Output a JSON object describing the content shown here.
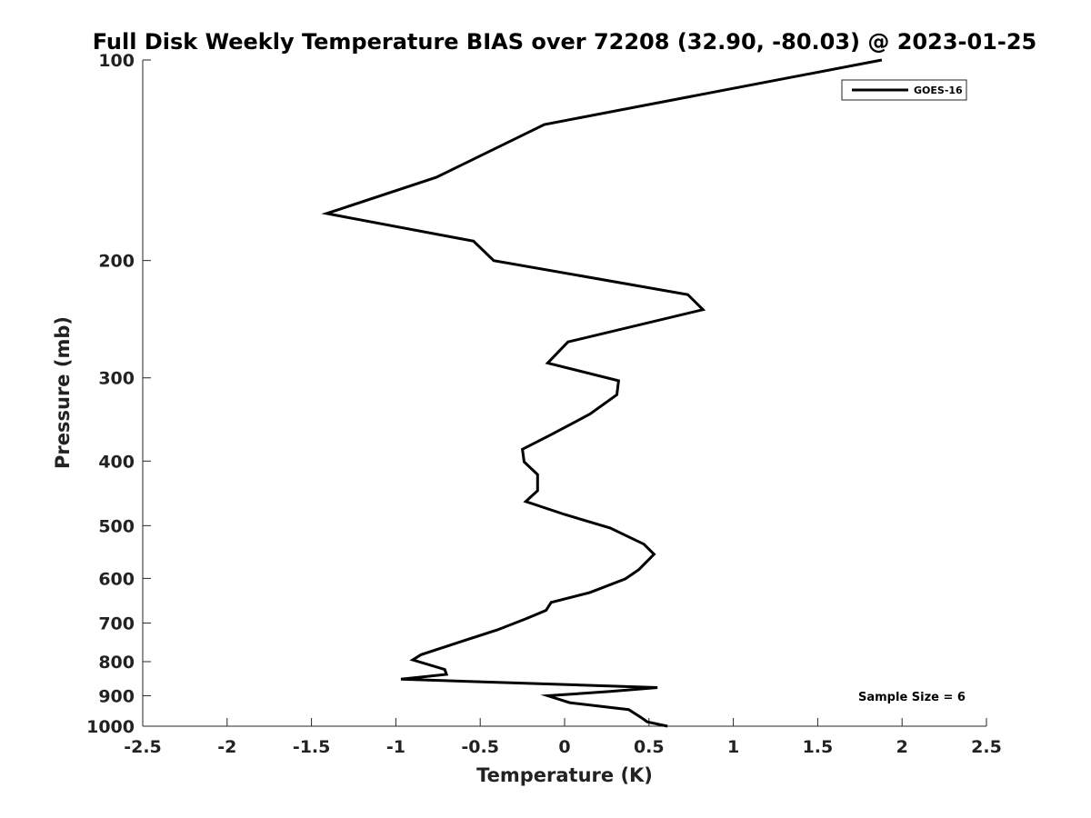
{
  "chart_data": {
    "type": "line",
    "title": "Full Disk Weekly Temperature BIAS over 72208 (32.90, -80.03) @ 2023-01-25",
    "xlabel": "Temperature (K)",
    "ylabel": "Pressure (mb)",
    "xlim": [
      -2.5,
      2.5
    ],
    "ylim": [
      100,
      1000
    ],
    "y_scale": "log",
    "y_reversed": true,
    "grid": false,
    "x_ticks": [
      -2.5,
      -2,
      -1.5,
      -1,
      -0.5,
      0,
      0.5,
      1,
      1.5,
      2,
      2.5
    ],
    "x_tick_labels": [
      "-2.5",
      "-2",
      "-1.5",
      "-1",
      "-0.5",
      "0",
      "0.5",
      "1",
      "1.5",
      "2",
      "2.5"
    ],
    "y_ticks": [
      100,
      200,
      300,
      400,
      500,
      600,
      700,
      800,
      900,
      1000
    ],
    "y_tick_labels": [
      "100",
      "200",
      "300",
      "400",
      "500",
      "600",
      "700",
      "800",
      "900",
      "1000"
    ],
    "legend": {
      "position": "top-right",
      "entries": [
        "GOES-16"
      ]
    },
    "annotation": "Sample Size = 6",
    "series": [
      {
        "name": "GOES-16",
        "color": "#000000",
        "points": [
          [
            1.88,
            100
          ],
          [
            -0.12,
            125
          ],
          [
            -0.76,
            150
          ],
          [
            -1.41,
            170
          ],
          [
            -0.54,
            187
          ],
          [
            -0.42,
            200
          ],
          [
            0.73,
            225
          ],
          [
            0.82,
            237
          ],
          [
            0.02,
            265
          ],
          [
            -0.1,
            285
          ],
          [
            0.32,
            303
          ],
          [
            0.31,
            318
          ],
          [
            0.15,
            340
          ],
          [
            -0.08,
            365
          ],
          [
            -0.25,
            384
          ],
          [
            -0.24,
            401
          ],
          [
            -0.16,
            419
          ],
          [
            -0.16,
            443
          ],
          [
            -0.23,
            460
          ],
          [
            0.0,
            481
          ],
          [
            0.27,
            504
          ],
          [
            0.47,
            533
          ],
          [
            0.53,
            552
          ],
          [
            0.44,
            582
          ],
          [
            0.36,
            601
          ],
          [
            0.15,
            630
          ],
          [
            -0.08,
            652
          ],
          [
            -0.11,
            670
          ],
          [
            -0.23,
            690
          ],
          [
            -0.4,
            717
          ],
          [
            -0.61,
            746
          ],
          [
            -0.85,
            781
          ],
          [
            -0.9,
            795
          ],
          [
            -0.71,
            822
          ],
          [
            -0.7,
            836
          ],
          [
            -0.97,
            850
          ],
          [
            0.55,
            875
          ],
          [
            0.27,
            887
          ],
          [
            -0.1,
            900
          ],
          [
            0.03,
            922
          ],
          [
            0.38,
            944
          ],
          [
            0.46,
            973
          ],
          [
            0.49,
            985
          ],
          [
            0.61,
            1000
          ]
        ]
      }
    ]
  }
}
